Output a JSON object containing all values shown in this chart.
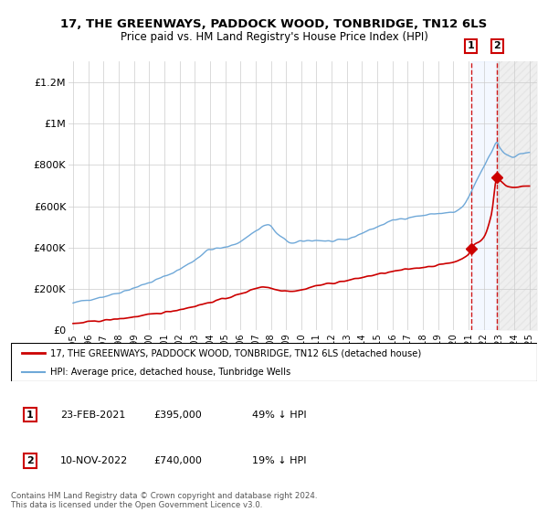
{
  "title": "17, THE GREENWAYS, PADDOCK WOOD, TONBRIDGE, TN12 6LS",
  "subtitle": "Price paid vs. HM Land Registry's House Price Index (HPI)",
  "ylim": [
    0,
    1300000
  ],
  "yticks": [
    0,
    200000,
    400000,
    600000,
    800000,
    1000000,
    1200000
  ],
  "ytick_labels": [
    "£0",
    "£200K",
    "£400K",
    "£600K",
    "£800K",
    "£1M",
    "£1.2M"
  ],
  "sale1_date": 2021.15,
  "sale1_price": 395000,
  "sale1_label": "1",
  "sale1_text": "23-FEB-2021",
  "sale1_pct": "49% ↓ HPI",
  "sale2_date": 2022.87,
  "sale2_price": 740000,
  "sale2_label": "2",
  "sale2_text": "10-NOV-2022",
  "sale2_pct": "19% ↓ HPI",
  "hpi_color": "#6fa8d8",
  "property_color": "#cc0000",
  "vline_color": "#cc0000",
  "background_color": "#ffffff",
  "grid_color": "#cccccc",
  "legend_property": "17, THE GREENWAYS, PADDOCK WOOD, TONBRIDGE, TN12 6LS (detached house)",
  "legend_hpi": "HPI: Average price, detached house, Tunbridge Wells",
  "footnote": "Contains HM Land Registry data © Crown copyright and database right 2024.\nThis data is licensed under the Open Government Licence v3.0.",
  "xmin": 1995,
  "xmax": 2025
}
